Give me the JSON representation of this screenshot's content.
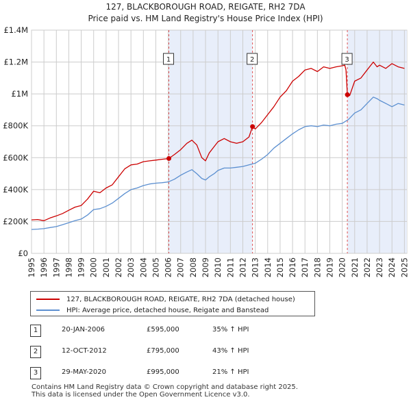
{
  "chart_data": {
    "type": "line",
    "title": "127, BLACKBOROUGH ROAD, REIGATE, RH2 7DA",
    "subtitle": "Price paid vs. HM Land Registry's House Price Index (HPI)",
    "xlabel": "",
    "ylabel": "",
    "xlim": [
      1995.0,
      2025.2
    ],
    "ylim": [
      0,
      1400000
    ],
    "y_ticks": [
      {
        "value": 0,
        "label": "£0"
      },
      {
        "value": 200000,
        "label": "£200K"
      },
      {
        "value": 400000,
        "label": "£400K"
      },
      {
        "value": 600000,
        "label": "£600K"
      },
      {
        "value": 800000,
        "label": "£800K"
      },
      {
        "value": 1000000,
        "label": "£1M"
      },
      {
        "value": 1200000,
        "label": "£1.2M"
      },
      {
        "value": 1400000,
        "label": "£1.4M"
      }
    ],
    "x_ticks": [
      "1995",
      "1996",
      "1997",
      "1998",
      "1999",
      "2000",
      "2001",
      "2002",
      "2003",
      "2004",
      "2005",
      "2006",
      "2007",
      "2008",
      "2009",
      "2010",
      "2011",
      "2012",
      "2013",
      "2014",
      "2015",
      "2016",
      "2017",
      "2018",
      "2019",
      "2020",
      "2021",
      "2022",
      "2023",
      "2024",
      "2025"
    ],
    "grid": true,
    "shaded_ranges": [
      [
        2006.05,
        2012.78
      ],
      [
        2020.41,
        2025.2
      ]
    ],
    "series": [
      {
        "name": "127, BLACKBOROUGH ROAD, REIGATE, RH2 7DA (detached house)",
        "color": "#cc0000",
        "x": [
          1995.0,
          1995.5,
          1996.0,
          1996.5,
          1997.0,
          1997.5,
          1998.0,
          1998.5,
          1999.0,
          1999.5,
          2000.0,
          2000.5,
          2001.0,
          2001.5,
          2002.0,
          2002.5,
          2003.0,
          2003.5,
          2004.0,
          2004.5,
          2005.0,
          2005.5,
          2006.05,
          2006.5,
          2007.0,
          2007.5,
          2007.9,
          2008.3,
          2008.7,
          2009.0,
          2009.3,
          2009.7,
          2010.0,
          2010.5,
          2011.0,
          2011.5,
          2012.0,
          2012.5,
          2012.78,
          2013.0,
          2013.5,
          2014.0,
          2014.5,
          2015.0,
          2015.5,
          2016.0,
          2016.5,
          2017.0,
          2017.5,
          2018.0,
          2018.5,
          2019.0,
          2019.5,
          2019.9,
          2020.2,
          2020.3,
          2020.41,
          2020.6,
          2021.0,
          2021.5,
          2022.0,
          2022.5,
          2022.8,
          2023.0,
          2023.5,
          2024.0,
          2024.5,
          2025.0
        ],
        "values": [
          210000,
          212000,
          205000,
          222000,
          235000,
          250000,
          270000,
          290000,
          300000,
          340000,
          390000,
          380000,
          410000,
          430000,
          480000,
          530000,
          555000,
          560000,
          575000,
          580000,
          585000,
          590000,
          595000,
          620000,
          650000,
          690000,
          710000,
          680000,
          600000,
          580000,
          630000,
          670000,
          700000,
          720000,
          700000,
          690000,
          700000,
          730000,
          795000,
          780000,
          820000,
          870000,
          920000,
          980000,
          1020000,
          1080000,
          1110000,
          1150000,
          1160000,
          1140000,
          1170000,
          1160000,
          1170000,
          1175000,
          1180000,
          1150000,
          995000,
          990000,
          1080000,
          1100000,
          1150000,
          1200000,
          1170000,
          1180000,
          1160000,
          1190000,
          1170000,
          1160000
        ]
      },
      {
        "name": "HPI: Average price, detached house, Reigate and Banstead",
        "color": "#5b8fd0",
        "x": [
          1995.0,
          1995.5,
          1996.0,
          1996.5,
          1997.0,
          1997.5,
          1998.0,
          1998.5,
          1999.0,
          1999.5,
          2000.0,
          2000.5,
          2001.0,
          2001.5,
          2002.0,
          2002.5,
          2003.0,
          2003.5,
          2004.0,
          2004.5,
          2005.0,
          2005.5,
          2006.0,
          2006.5,
          2007.0,
          2007.5,
          2007.9,
          2008.3,
          2008.7,
          2009.0,
          2009.3,
          2009.7,
          2010.0,
          2010.5,
          2011.0,
          2011.5,
          2012.0,
          2012.5,
          2013.0,
          2013.5,
          2014.0,
          2014.5,
          2015.0,
          2015.5,
          2016.0,
          2016.5,
          2017.0,
          2017.5,
          2018.0,
          2018.5,
          2019.0,
          2019.5,
          2020.0,
          2020.5,
          2021.0,
          2021.5,
          2022.0,
          2022.5,
          2022.8,
          2023.0,
          2023.5,
          2024.0,
          2024.5,
          2025.0
        ],
        "values": [
          150000,
          152000,
          155000,
          162000,
          168000,
          180000,
          192000,
          205000,
          215000,
          240000,
          275000,
          280000,
          295000,
          315000,
          345000,
          375000,
          400000,
          410000,
          425000,
          435000,
          440000,
          443000,
          448000,
          465000,
          490000,
          510000,
          525000,
          500000,
          470000,
          460000,
          480000,
          500000,
          520000,
          535000,
          535000,
          540000,
          545000,
          555000,
          565000,
          590000,
          620000,
          660000,
          690000,
          720000,
          750000,
          775000,
          795000,
          800000,
          795000,
          805000,
          800000,
          810000,
          815000,
          840000,
          880000,
          900000,
          940000,
          980000,
          970000,
          960000,
          940000,
          920000,
          940000,
          930000
        ]
      }
    ],
    "sales": [
      {
        "label": "1",
        "x": 2006.05,
        "value": 595000
      },
      {
        "label": "2",
        "x": 2012.78,
        "value": 795000
      },
      {
        "label": "3",
        "x": 2020.41,
        "value": 995000
      }
    ]
  },
  "legend": [
    {
      "label": "127, BLACKBOROUGH ROAD, REIGATE, RH2 7DA (detached house)",
      "color": "#cc0000"
    },
    {
      "label": "HPI: Average price, detached house, Reigate and Banstead",
      "color": "#5b8fd0"
    }
  ],
  "transactions": [
    {
      "num": "1",
      "date": "20-JAN-2006",
      "price": "£595,000",
      "hpi": "35% ↑ HPI"
    },
    {
      "num": "2",
      "date": "12-OCT-2012",
      "price": "£795,000",
      "hpi": "43% ↑ HPI"
    },
    {
      "num": "3",
      "date": "29-MAY-2020",
      "price": "£995,000",
      "hpi": "21% ↑ HPI"
    }
  ],
  "footer": {
    "line1": "Contains HM Land Registry data © Crown copyright and database right 2025.",
    "line2": "This data is licensed under the Open Government Licence v3.0."
  }
}
